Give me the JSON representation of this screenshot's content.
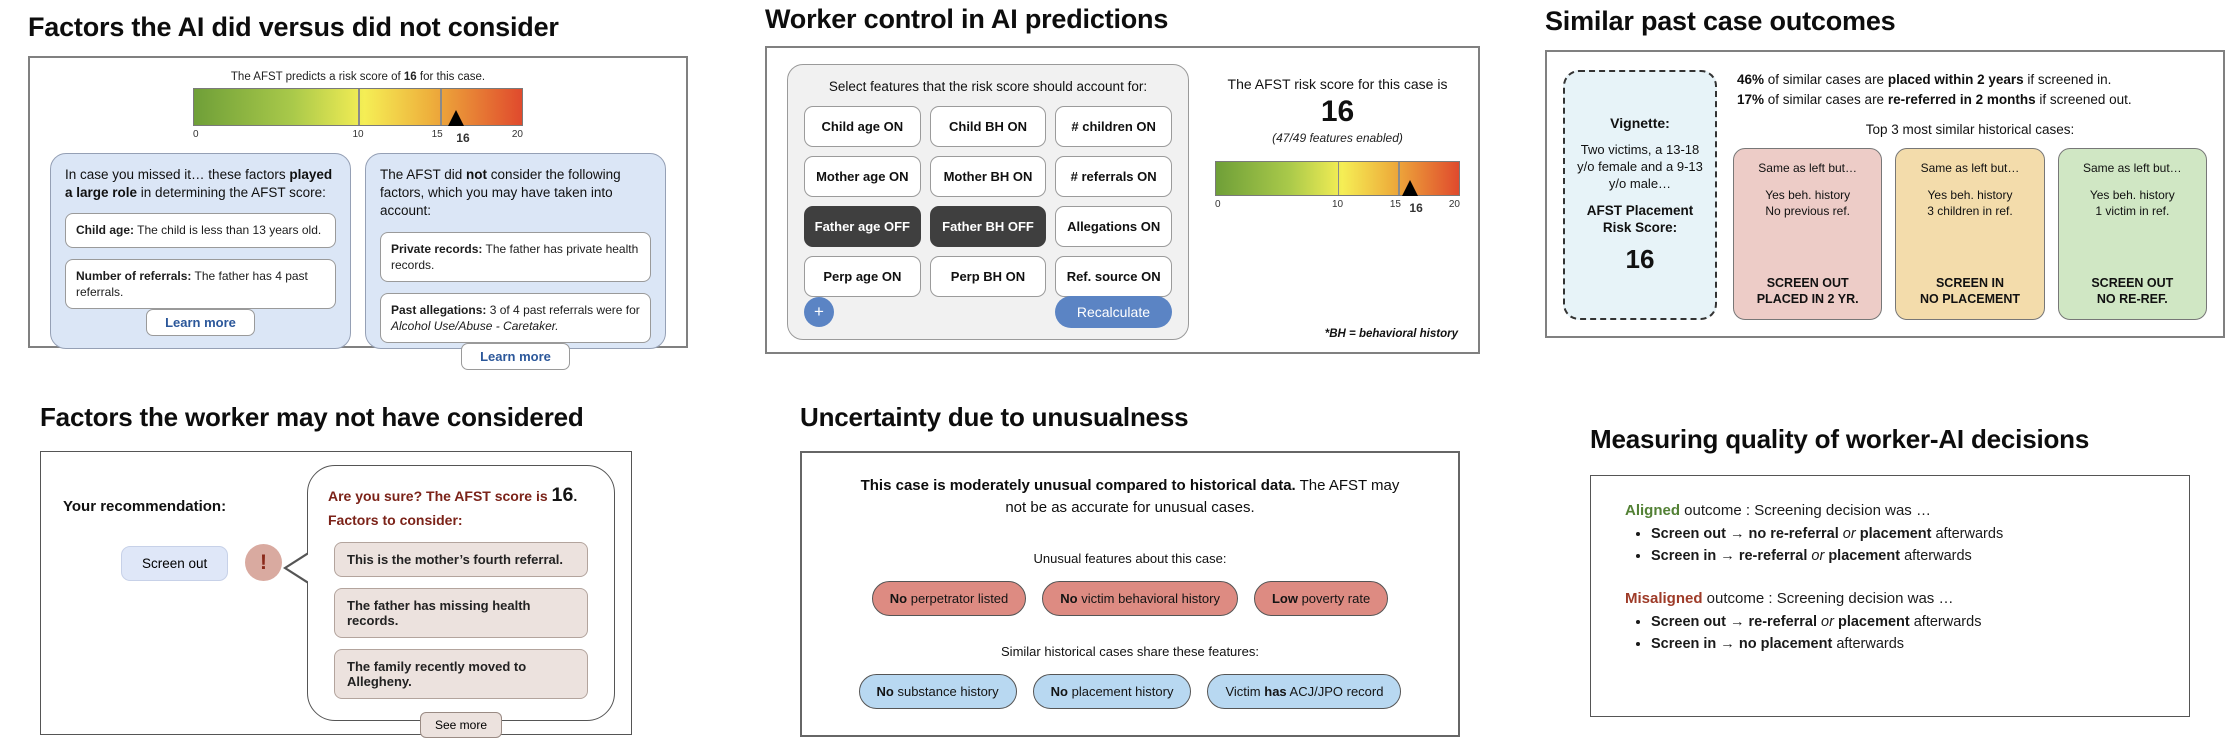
{
  "factors_ai": {
    "title": "Factors the AI did versus did not consider",
    "scale_caption": [
      {
        "t": "The AFST predicts a risk score of "
      },
      {
        "t": "16",
        "b": 1
      },
      {
        "t": " for this case."
      }
    ],
    "scale_ticks": [
      "0",
      "10",
      "15",
      "20"
    ],
    "marker_value": "16",
    "considered": {
      "intro": [
        {
          "t": "In case you missed it… these factors "
        },
        {
          "t": "played a large role",
          "b": 1
        },
        {
          "t": " in determining the AFST score:"
        }
      ],
      "factors": [
        [
          {
            "t": "Child age:",
            "b": 1
          },
          {
            "t": " The child is less than 13 years old."
          }
        ],
        [
          {
            "t": "Number of referrals:",
            "b": 1
          },
          {
            "t": " The father has 4 past referrals."
          }
        ]
      ],
      "button": "Learn more"
    },
    "not_considered": {
      "intro": [
        {
          "t": "The AFST did "
        },
        {
          "t": "not",
          "b": 1
        },
        {
          "t": " consider the following factors, which you may have taken into account:"
        }
      ],
      "factors": [
        [
          {
            "t": "Private records:",
            "b": 1
          },
          {
            "t": " The father has private health records."
          }
        ],
        [
          {
            "t": "Past allegations:",
            "b": 1
          },
          {
            "t": " 3 of 4 past referrals were for "
          },
          {
            "t": "Alcohol Use/Abuse - Caretaker.",
            "i": 1
          }
        ]
      ],
      "button": "Learn more"
    }
  },
  "worker_control": {
    "title": "Worker control in AI predictions",
    "select_label": "Select features that the risk score should account for:",
    "toggles": [
      {
        "label": "Child age ON",
        "state": "on"
      },
      {
        "label": "Child BH ON",
        "state": "on"
      },
      {
        "label": "# children ON",
        "state": "on"
      },
      {
        "label": "Mother age ON",
        "state": "on"
      },
      {
        "label": "Mother BH ON",
        "state": "on"
      },
      {
        "label": "# referrals ON",
        "state": "on"
      },
      {
        "label": "Father age OFF",
        "state": "off"
      },
      {
        "label": "Father BH OFF",
        "state": "off"
      },
      {
        "label": "Allegations ON",
        "state": "on"
      },
      {
        "label": "Perp age ON",
        "state": "on"
      },
      {
        "label": "Perp BH ON",
        "state": "on"
      },
      {
        "label": "Ref. source ON",
        "state": "on"
      }
    ],
    "add_button": "+",
    "recalculate_button": "Recalculate",
    "score_caption": "The AFST risk score for this case is",
    "score": "16",
    "enabled_note": "(47/49 features enabled)",
    "scale_ticks": [
      "0",
      "10",
      "15",
      "20"
    ],
    "marker_value": "16",
    "footnote": "*BH = behavioral history"
  },
  "similar_cases": {
    "title": "Similar past case outcomes",
    "vignette": {
      "heading": "Vignette:",
      "description": "Two victims, a 13-18 y/o female and a 9-13 y/o male…",
      "score_label": "AFST Placement Risk Score:",
      "score": "16"
    },
    "stat1": [
      {
        "t": "46%",
        "b": 1
      },
      {
        "t": " of similar cases are "
      },
      {
        "t": "placed within 2 years",
        "b": 1
      },
      {
        "t": " if screened in."
      }
    ],
    "stat2": [
      {
        "t": "17%",
        "b": 1
      },
      {
        "t": " of similar cases are "
      },
      {
        "t": "re-referred in 2 months",
        "b": 1
      },
      {
        "t": " if screened out."
      }
    ],
    "top_label": "Top 3 most similar historical cases:",
    "cases": [
      {
        "heading": "Same as left but…",
        "detail1": "Yes beh. history",
        "detail2": "No previous ref.",
        "outcome1": "SCREEN OUT",
        "outcome2": "PLACED IN 2 YR.",
        "color": "#edccc7"
      },
      {
        "heading": "Same as left but…",
        "detail1": "Yes beh. history",
        "detail2": "3 children in ref.",
        "outcome1": "SCREEN IN",
        "outcome2": "NO PLACEMENT",
        "color": "#f3dcab"
      },
      {
        "heading": "Same as left but…",
        "detail1": "Yes beh. history",
        "detail2": "1 victim in ref.",
        "outcome1": "SCREEN OUT",
        "outcome2": "NO RE-REF.",
        "color": "#d0e7c4"
      }
    ]
  },
  "worker_factors": {
    "title": "Factors the worker may not have considered",
    "recommendation_label": "Your recommendation:",
    "recommendation": "Screen out",
    "alert_glyph": "!",
    "bubble_line1": [
      {
        "t": "Are you sure? The AFST score is ",
        "b": 1
      },
      {
        "t": "16",
        "b": 1,
        "c": "#141414",
        "s": 1.4
      },
      {
        "t": ".",
        "b": 1,
        "c": "#141414"
      }
    ],
    "bubble_line2": "Factors to consider:",
    "factors": [
      "This is the mother’s fourth referral.",
      "The father has missing health records.",
      "The family recently moved to Allegheny."
    ],
    "see_more_button": "See more"
  },
  "uncertainty": {
    "title": "Uncertainty due to unusualness",
    "headline": [
      {
        "t": "This case is moderately unusual compared to historical data.",
        "b": 1
      },
      {
        "t": " The AFST may not be as accurate for unusual cases."
      }
    ],
    "unusual_label": "Unusual features about this case:",
    "unusual_pills": [
      [
        {
          "t": "No",
          "b": 1
        },
        {
          "t": " perpetrator listed"
        }
      ],
      [
        {
          "t": "No",
          "b": 1
        },
        {
          "t": " victim behavioral history"
        }
      ],
      [
        {
          "t": "Low",
          "b": 1
        },
        {
          "t": " poverty rate"
        }
      ]
    ],
    "similar_label": "Similar historical cases share these features:",
    "similar_pills": [
      [
        {
          "t": "No",
          "b": 1
        },
        {
          "t": " substance history"
        }
      ],
      [
        {
          "t": "No",
          "b": 1
        },
        {
          "t": " placement history"
        }
      ],
      [
        {
          "t": "Victim "
        },
        {
          "t": "has",
          "b": 1
        },
        {
          "t": " ACJ/JPO record"
        }
      ]
    ]
  },
  "decision_quality": {
    "title": "Measuring quality of worker-AI decisions",
    "aligned_header": [
      {
        "t": "Aligned",
        "b": 1,
        "c": "#538135"
      },
      {
        "t": " outcome : Screening decision was …"
      }
    ],
    "aligned_bullets": [
      [
        {
          "t": "Screen out",
          "b": 1
        },
        {
          "t": " → ",
          "b": 1
        },
        {
          "t": "no re-referral",
          "b": 1
        },
        {
          "t": " "
        },
        {
          "t": "or",
          "i": 1
        },
        {
          "t": " "
        },
        {
          "t": "placement",
          "b": 1
        },
        {
          "t": " afterwards"
        }
      ],
      [
        {
          "t": "Screen in",
          "b": 1
        },
        {
          "t": " → ",
          "b": 1
        },
        {
          "t": "re-referral",
          "b": 1
        },
        {
          "t": " "
        },
        {
          "t": "or",
          "i": 1
        },
        {
          "t": " "
        },
        {
          "t": "placement",
          "b": 1
        },
        {
          "t": " afterwards"
        }
      ]
    ],
    "misaligned_header": [
      {
        "t": "Misaligned",
        "b": 1,
        "c": "#9e3b28"
      },
      {
        "t": " outcome : Screening decision was …"
      }
    ],
    "misaligned_bullets": [
      [
        {
          "t": "Screen out",
          "b": 1
        },
        {
          "t": " → ",
          "b": 1
        },
        {
          "t": "re-referral",
          "b": 1
        },
        {
          "t": " "
        },
        {
          "t": "or",
          "i": 1
        },
        {
          "t": " "
        },
        {
          "t": "placement",
          "b": 1
        },
        {
          "t": " afterwards"
        }
      ],
      [
        {
          "t": "Screen in",
          "b": 1
        },
        {
          "t": " → ",
          "b": 1
        },
        {
          "t": "no placement",
          "b": 1
        },
        {
          "t": " afterwards"
        }
      ]
    ]
  },
  "colors": {
    "accent_blue": "#5b84c4",
    "toggle_off_gray": "#3f3f3f",
    "card_blue": "#dbe6f6",
    "vignette_blue": "#e7f3f8",
    "case_pink": "#edccc7",
    "case_tan": "#f3dcab",
    "case_green": "#d0e7c4",
    "pill_red": "#dd8b82",
    "pill_blue": "#b8d8f1",
    "maroon_text": "#7b2218",
    "aligned_green": "#538135",
    "misaligned_red": "#9e3b28",
    "gradient_green": "#6f9f38",
    "gradient_yellow": "#f5ee55",
    "gradient_red": "#e04a2d"
  }
}
